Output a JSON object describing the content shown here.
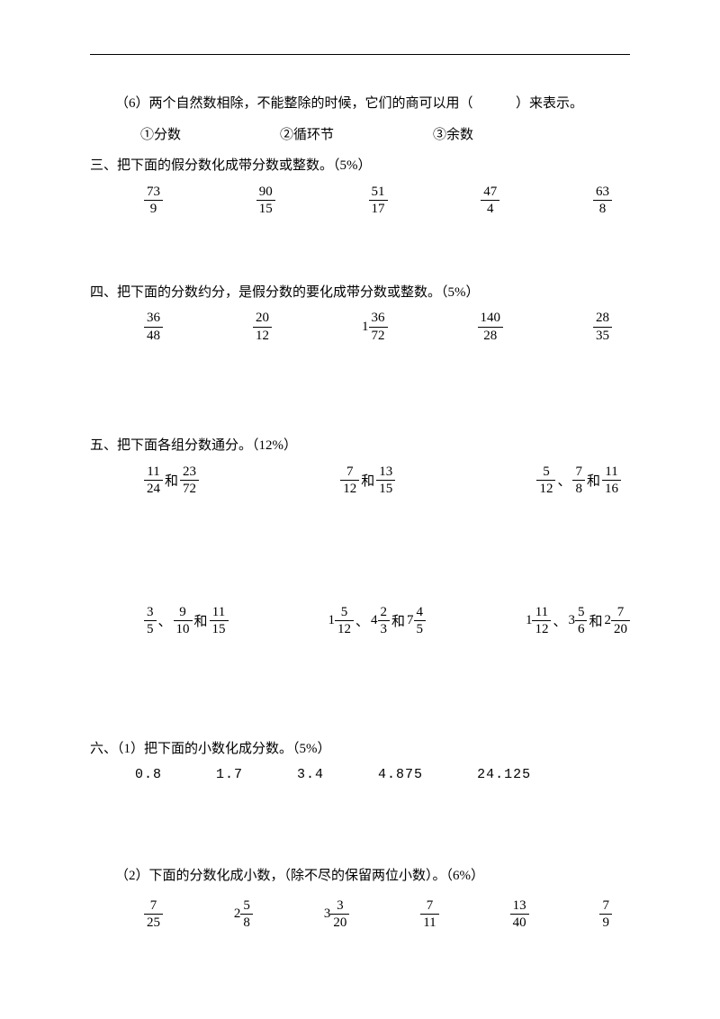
{
  "q6": {
    "text_a": "（6）两个自然数相除，不能整除的时候，它们的商可以用（",
    "text_b": "）来表示。",
    "opt1": "①分数",
    "opt2": "②循环节",
    "opt3": "③余数"
  },
  "s3": {
    "title": "三、把下面的假分数化成带分数或整数。（5%）",
    "fracs": [
      {
        "n": "73",
        "d": "9"
      },
      {
        "n": "90",
        "d": "15"
      },
      {
        "n": "51",
        "d": "17"
      },
      {
        "n": "47",
        "d": "4"
      },
      {
        "n": "63",
        "d": "8"
      }
    ]
  },
  "s4": {
    "title": "四、把下面的分数约分，是假分数的要化成带分数或整数。（5%）",
    "items": [
      {
        "w": "",
        "n": "36",
        "d": "48"
      },
      {
        "w": "",
        "n": "20",
        "d": "12"
      },
      {
        "w": "1",
        "n": "36",
        "d": "72"
      },
      {
        "w": "",
        "n": "140",
        "d": "28"
      },
      {
        "w": "",
        "n": "28",
        "d": "35"
      }
    ]
  },
  "s5": {
    "title": "五、把下面各组分数通分。（12%）",
    "row1": [
      {
        "parts": [
          {
            "n": "11",
            "d": "24"
          },
          {
            "t": "和"
          },
          {
            "n": "23",
            "d": "72"
          }
        ]
      },
      {
        "parts": [
          {
            "n": "7",
            "d": "12"
          },
          {
            "t": "和"
          },
          {
            "n": "13",
            "d": "15"
          }
        ]
      },
      {
        "parts": [
          {
            "n": "5",
            "d": "12"
          },
          {
            "t": "、"
          },
          {
            "n": "7",
            "d": "8"
          },
          {
            "t": "和"
          },
          {
            "n": "11",
            "d": "16"
          }
        ]
      }
    ],
    "row2": [
      {
        "parts": [
          {
            "n": "3",
            "d": "5"
          },
          {
            "t": "、"
          },
          {
            "n": "9",
            "d": "10"
          },
          {
            "t": "和"
          },
          {
            "n": "11",
            "d": "15"
          }
        ]
      },
      {
        "parts": [
          {
            "w": "1",
            "n": "5",
            "d": "12"
          },
          {
            "t": "、"
          },
          {
            "w": "4",
            "n": "2",
            "d": "3"
          },
          {
            "t": "和"
          },
          {
            "w": "7",
            "n": "4",
            "d": "5"
          }
        ]
      },
      {
        "parts": [
          {
            "w": "1",
            "n": "11",
            "d": "12"
          },
          {
            "t": "、"
          },
          {
            "w": "3",
            "n": "5",
            "d": "6"
          },
          {
            "t": "和"
          },
          {
            "w": "2",
            "n": "7",
            "d": "20"
          }
        ]
      }
    ]
  },
  "s6": {
    "title": "六、（1）把下面的小数化成分数。（5%）",
    "decimals": [
      "0.8",
      "1.7",
      "3.4",
      "4.875",
      "24.125"
    ],
    "sub2_title": "（2）下面的分数化成小数，（除不尽的保留两位小数）。（6%）",
    "sub2_items": [
      {
        "w": "",
        "n": "7",
        "d": "25"
      },
      {
        "w": "2",
        "n": "5",
        "d": "8"
      },
      {
        "w": "3",
        "n": "3",
        "d": "20"
      },
      {
        "w": "",
        "n": "7",
        "d": "11"
      },
      {
        "w": "",
        "n": "13",
        "d": "40"
      },
      {
        "w": "",
        "n": "7",
        "d": "9"
      }
    ]
  }
}
